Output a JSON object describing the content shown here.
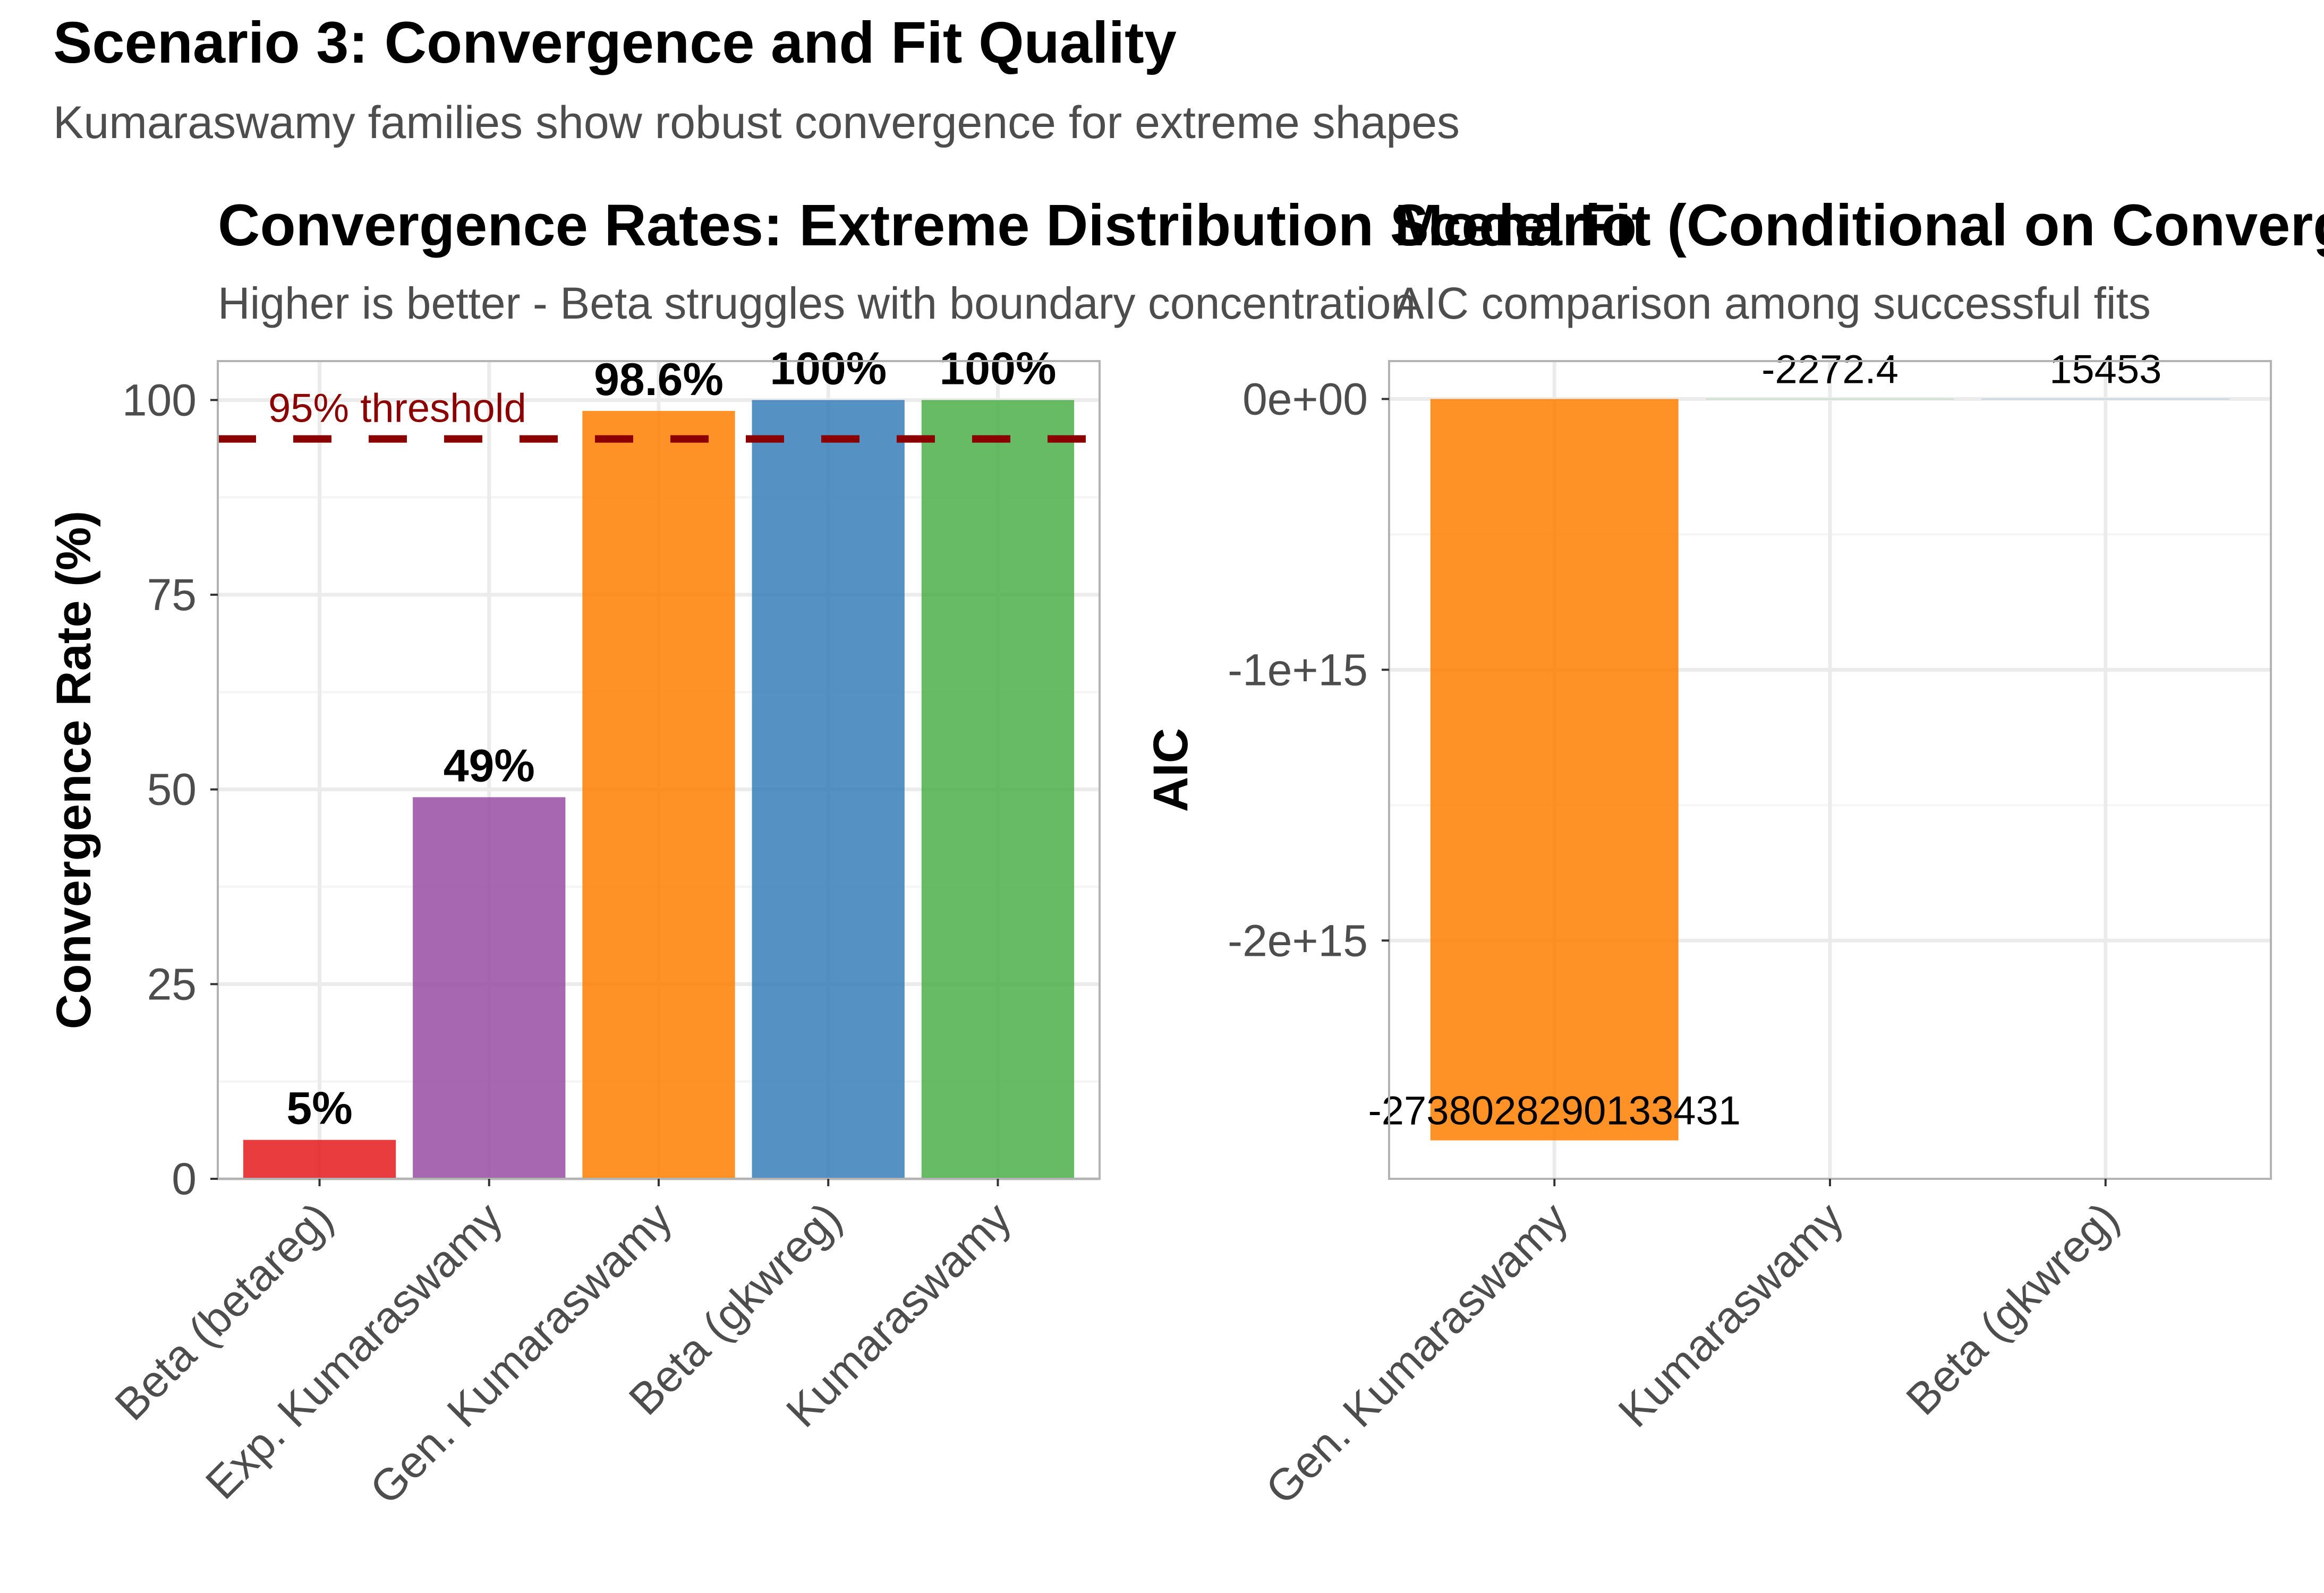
{
  "figure": {
    "title": "Scenario 3: Convergence and Fit Quality",
    "subtitle": "Kumaraswamy families show robust convergence for extreme shapes"
  },
  "colors": {
    "beta_betareg": "#E41A1C",
    "exp_kumaraswamy": "#984EA3",
    "gen_kumaraswamy": "#FF7F00",
    "beta_gkwreg": "#377EB8",
    "kumaraswamy": "#4DAF4A",
    "threshold": "#8B0000",
    "grid": "#EBEBEB",
    "panel_border": "#B3B3B3",
    "axis_text": "#4D4D4D"
  },
  "chart_data": [
    {
      "type": "bar",
      "title": "Convergence Rates: Extreme Distribution Scenario",
      "subtitle": "Higher is better - Beta struggles with boundary concentration",
      "xlabel": "",
      "ylabel": "Convergence Rate (%)",
      "ylim": [
        0,
        105
      ],
      "yticks": [
        0,
        25,
        50,
        75,
        100
      ],
      "ytick_labels": [
        "0",
        "25",
        "50",
        "75",
        "100"
      ],
      "categories": [
        "Beta (betareg)",
        "Exp. Kumaraswamy",
        "Gen. Kumaraswamy",
        "Beta (gkwreg)",
        "Kumaraswamy"
      ],
      "values": [
        5,
        49,
        98.6,
        100,
        100
      ],
      "data_labels": [
        "5%",
        "49%",
        "98.6%",
        "100%",
        "100%"
      ],
      "bar_colors": [
        "#E41A1C",
        "#984EA3",
        "#FF7F00",
        "#377EB8",
        "#4DAF4A"
      ],
      "reference_line": {
        "value": 95,
        "label": "95% threshold",
        "style": "dashed"
      },
      "grid": true
    },
    {
      "type": "bar",
      "title": "Model Fit (Conditional on Convergence)",
      "subtitle": "AIC comparison among successful fits",
      "xlabel": "",
      "ylabel": "AIC",
      "ylim": [
        -2880000000000000,
        140000000000000
      ],
      "yticks": [
        0,
        -1000000000000000,
        -2000000000000000
      ],
      "ytick_labels": [
        "0e+00",
        "-1e+15",
        "-2e+15"
      ],
      "categories": [
        "Gen. Kumaraswamy",
        "Kumaraswamy",
        "Beta (gkwreg)"
      ],
      "values": [
        -2738028290133431,
        -2272.4,
        15453
      ],
      "data_labels": [
        "-2738028290133431",
        "-2272.4",
        "15453"
      ],
      "bar_colors": [
        "#FF7F00",
        "#4DAF4A",
        "#377EB8"
      ],
      "grid": true
    }
  ]
}
